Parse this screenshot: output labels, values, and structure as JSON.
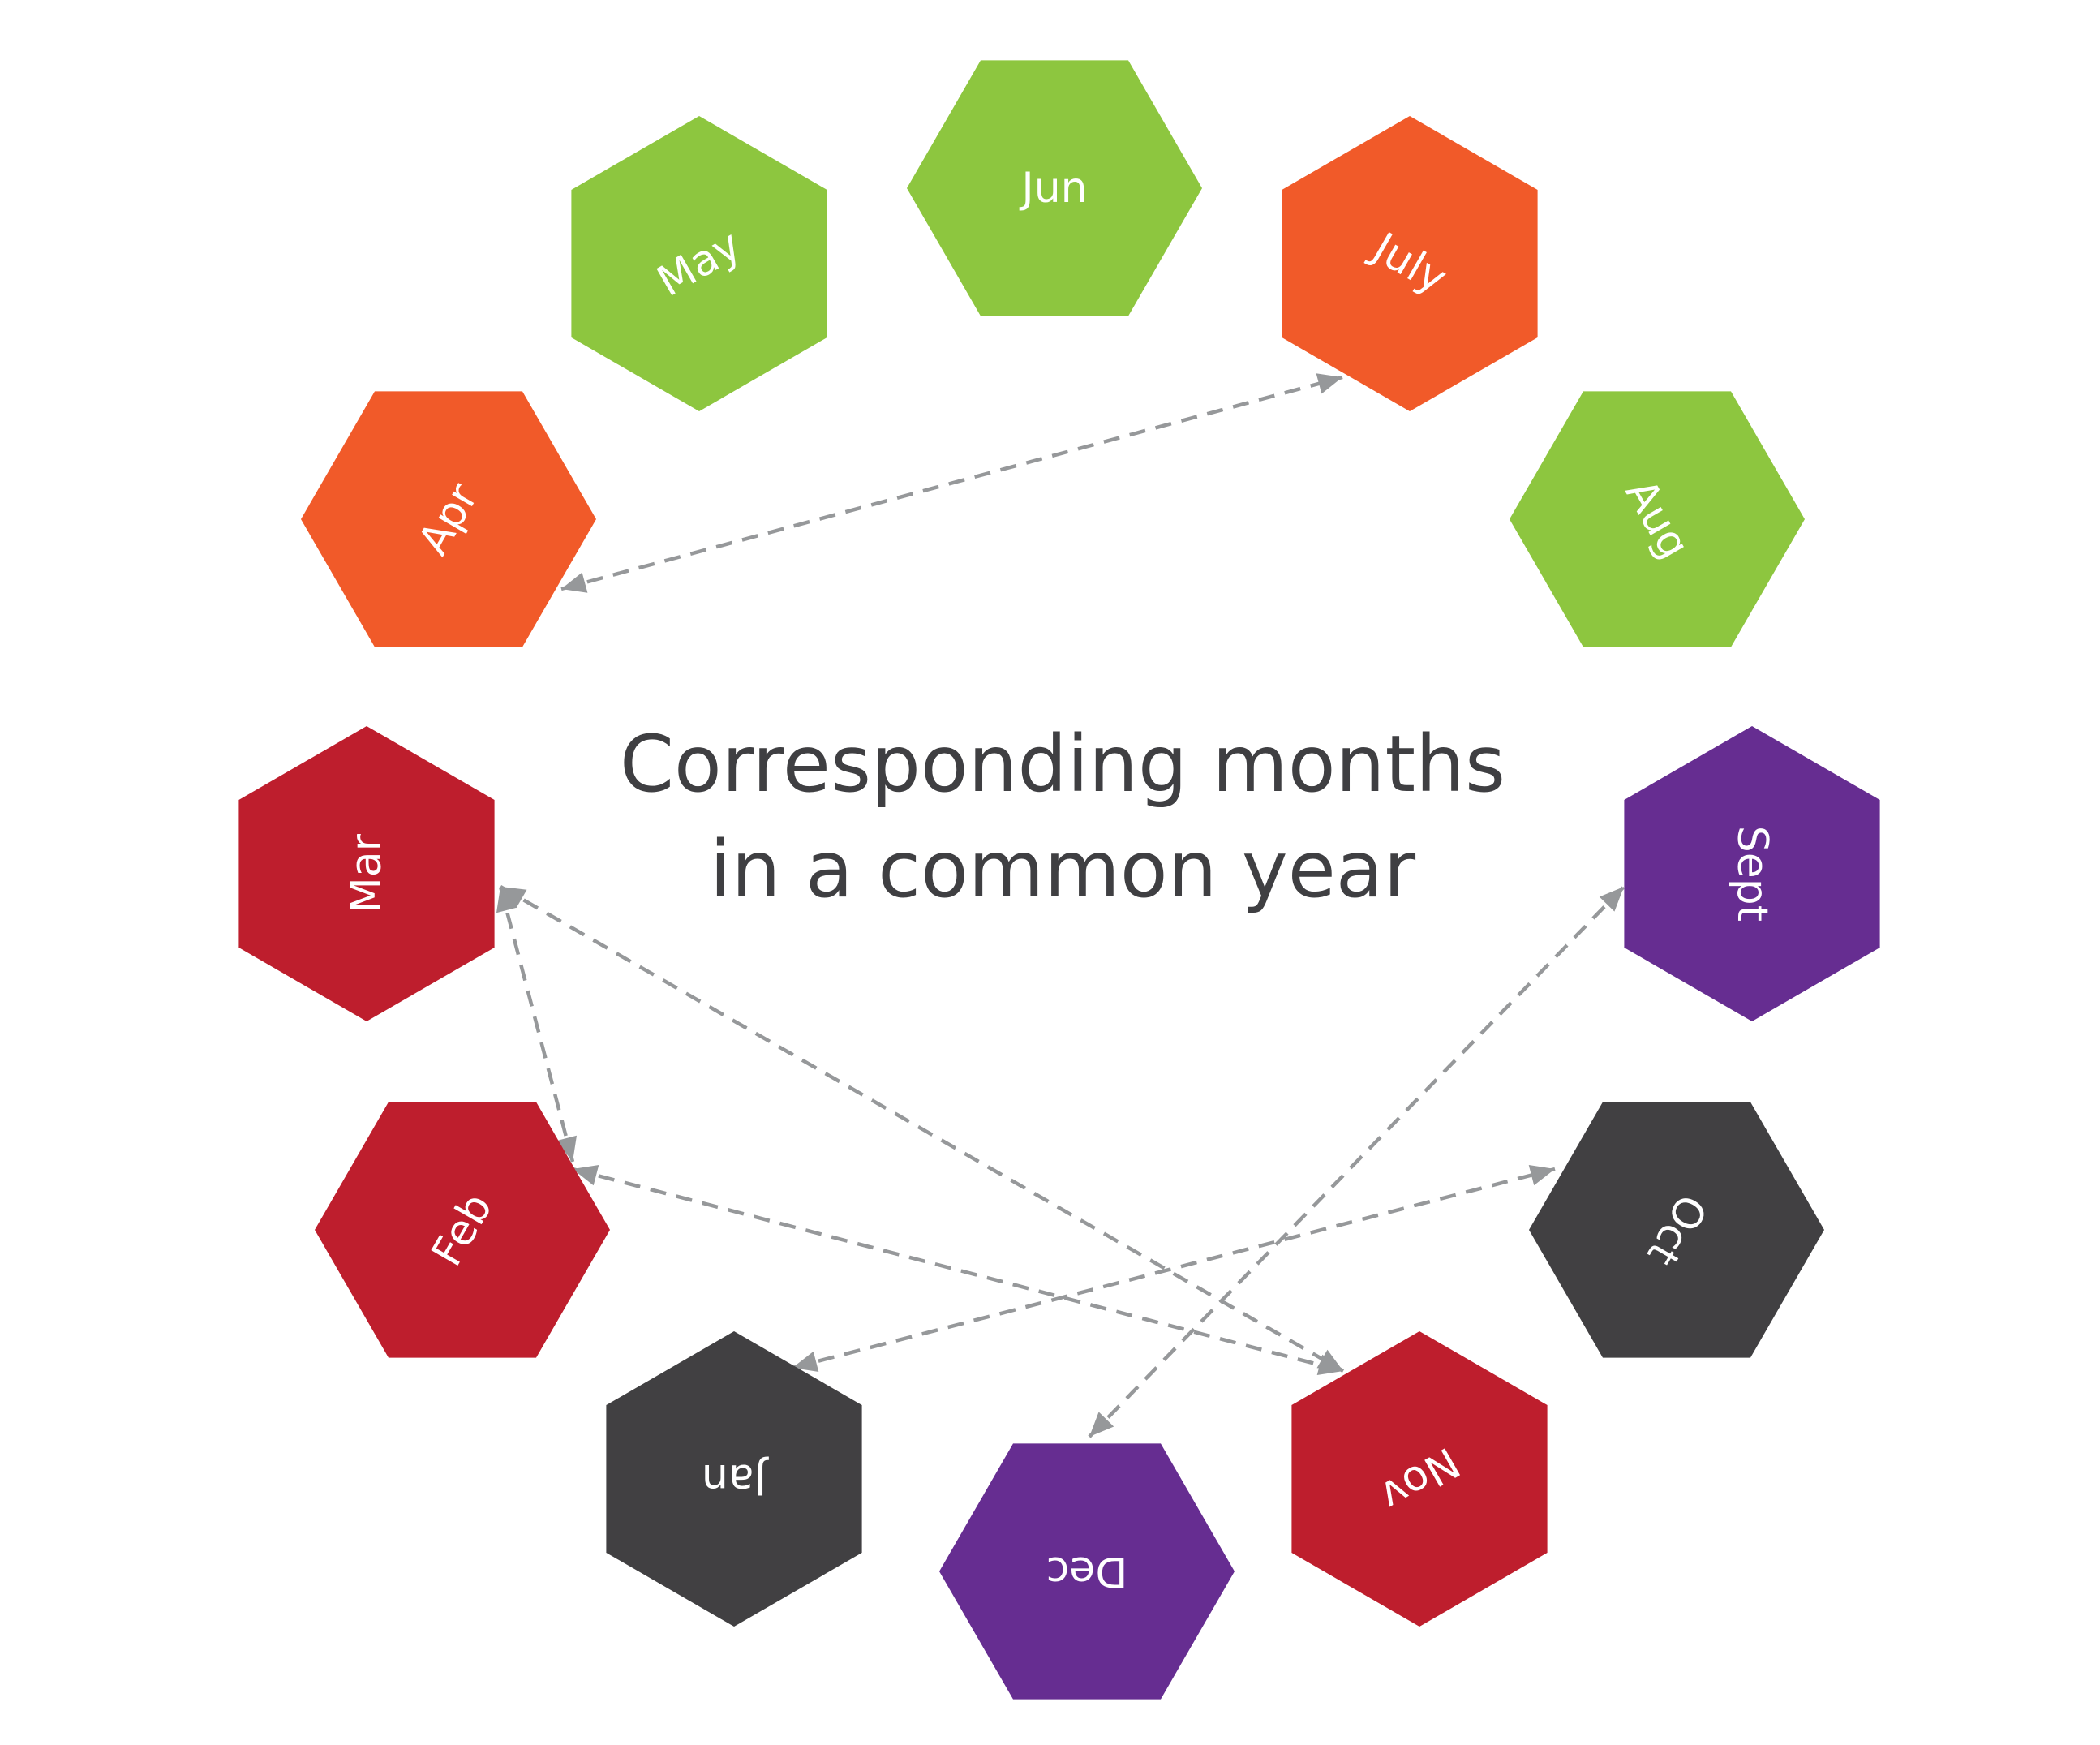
{
  "title": {
    "line1": "Corresponding months",
    "line2": "in a common year"
  },
  "colors": {
    "green": "#8dc63f",
    "orange": "#f15a29",
    "red": "#be1e2d",
    "purple": "#662d91",
    "dark": "#414042",
    "connector": "#96989a",
    "label": "#ffffff",
    "title": "#3f3f42"
  },
  "months": [
    {
      "id": "jan",
      "label": "Jan",
      "color": "dark"
    },
    {
      "id": "feb",
      "label": "Feb",
      "color": "red"
    },
    {
      "id": "mar",
      "label": "Mar",
      "color": "red"
    },
    {
      "id": "apr",
      "label": "Apr",
      "color": "orange"
    },
    {
      "id": "may",
      "label": "May",
      "color": "green"
    },
    {
      "id": "jun",
      "label": "Jun",
      "color": "green"
    },
    {
      "id": "jul",
      "label": "July",
      "color": "orange"
    },
    {
      "id": "aug",
      "label": "Aug",
      "color": "green"
    },
    {
      "id": "sep",
      "label": "Sept",
      "color": "purple"
    },
    {
      "id": "oct",
      "label": "Oct",
      "color": "dark"
    },
    {
      "id": "nov",
      "label": "Nov",
      "color": "red"
    },
    {
      "id": "dec",
      "label": "Dec",
      "color": "purple"
    }
  ],
  "connections": [
    {
      "from": "apr",
      "to": "jul"
    },
    {
      "from": "mar",
      "to": "nov"
    },
    {
      "from": "feb",
      "to": "mar"
    },
    {
      "from": "feb",
      "to": "nov"
    },
    {
      "from": "jan",
      "to": "oct"
    },
    {
      "from": "dec",
      "to": "sep"
    }
  ]
}
